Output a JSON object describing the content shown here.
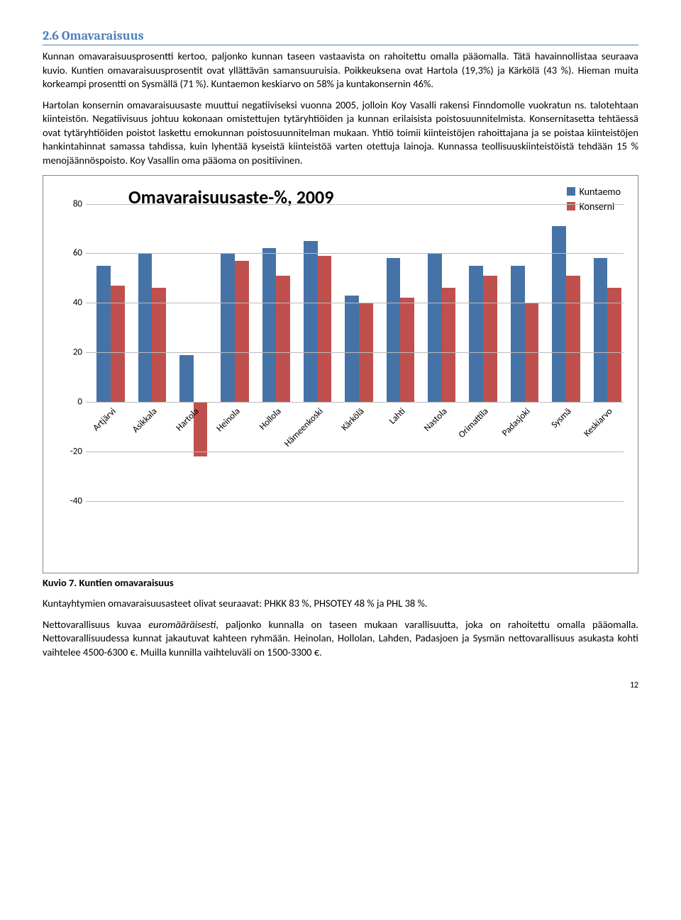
{
  "heading": "2.6 Omavaraisuus",
  "para1": "Kunnan omavaraisuusprosentti kertoo, paljonko kunnan taseen vastaavista on rahoitettu omalla pääomalla. Tätä havainnollistaa seuraava kuvio. Kuntien omavaraisuusprosentit ovat yllättävän samansuuruisia. Poikkeuksena ovat Hartola (19,3%) ja Kärkölä (43 %). Hieman muita korkeampi prosentti on Sysmällä (71 %). Kuntaemon keskiarvo on 58% ja kuntakonsernin 46%.",
  "para2": "Hartolan konsernin omavaraisuusaste muuttui negatiiviseksi vuonna 2005, jolloin Koy Vasalli rakensi Finndomolle vuokratun ns. talotehtaan kiinteistön. Negatiivisuus johtuu kokonaan omistettujen tytäryhtiöiden ja kunnan erilaisista poistosuunnitelmista. Konsernitasetta tehtäessä ovat tytäryhtiöiden poistot laskettu emokunnan poistosuunnitelman mukaan. Yhtiö toimii kiinteistöjen rahoittajana ja se poistaa kiinteistöjen hankintahinnat samassa tahdissa, kuin lyhentää kyseistä kiinteistöä varten otettuja lainoja. Kunnassa teollisuuskiinteistöistä tehdään 15 % menojäännöspoisto. Koy Vasallin oma pääoma on positiivinen.",
  "chart": {
    "title": "Omavaraisuusaste-%, 2009",
    "legend": [
      {
        "label": "Kuntaemo",
        "color": "#4573a7"
      },
      {
        "label": "Konserni",
        "color": "#c0504d"
      }
    ],
    "categories": [
      "Artjärvi",
      "Asikkala",
      "Hartola",
      "Heinola",
      "Hollola",
      "Hämeenkoski",
      "Kärkölä",
      "Lahti",
      "Nastola",
      "Orimattila",
      "Padasjoki",
      "Sysmä",
      "Keskiarvo"
    ],
    "kuntaemo": [
      55,
      60,
      19,
      60,
      62,
      65,
      43,
      58,
      60,
      55,
      55,
      71,
      58
    ],
    "konserni": [
      47,
      46,
      -22,
      57,
      51,
      59,
      40,
      42,
      46,
      51,
      40,
      51,
      46
    ],
    "ymin": -40,
    "ymax": 80,
    "ytick_step": 20,
    "bar_colors": {
      "kuntaemo": "#4573a7",
      "konserni": "#c0504d"
    },
    "grid_color": "#bbbbbb",
    "axis_color": "#888888",
    "group_width_pct": 5.2,
    "group_gap_pct": 7.7
  },
  "caption_bold": "Kuvio 7. Kuntien omavaraisuus",
  "para3": "Kuntayhtymien omavaraisuusasteet olivat seuraavat: PHKK 83 %, PHSOTEY 48 % ja PHL 38 %.",
  "para4a": "Nettovarallisuus kuvaa ",
  "para4em": "euromääräisesti",
  "para4b": ", paljonko kunnalla on taseen mukaan varallisuutta, joka on rahoitettu omalla pääomalla. Nettovarallisuudessa kunnat jakautuvat kahteen ryhmään. Heinolan, Hollolan, Lahden, Padasjoen ja Sysmän nettovarallisuus asukasta kohti vaihtelee 4500-6300 €. Muilla kunnilla vaihteluväli on 1500-3300 €.",
  "page": "12"
}
